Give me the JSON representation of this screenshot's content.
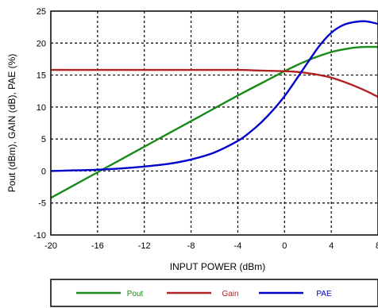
{
  "chart_data": {
    "type": "line",
    "title": "",
    "xlabel": "INPUT POWER (dBm)",
    "ylabel": "Pout (dBm), GAIN (dB), PAE (%)",
    "xlim": [
      -20,
      8
    ],
    "ylim": [
      -10,
      25
    ],
    "x_ticks": [
      -20,
      -16,
      -12,
      -8,
      -4,
      0,
      4,
      8
    ],
    "x_tick_labels": [
      "-20",
      "-16",
      "-12",
      "-8",
      "-4",
      "0",
      "4",
      "8"
    ],
    "y_ticks": [
      -10,
      -5,
      0,
      5,
      10,
      15,
      20,
      25
    ],
    "y_tick_labels": [
      "-10",
      "-5",
      "0",
      "5",
      "10",
      "15",
      "20",
      "25"
    ],
    "grid": true,
    "legend_position": "bottom",
    "series": [
      {
        "name": "Pout",
        "color": "#1a8a1a",
        "x": [
          -20,
          -18,
          -16,
          -14,
          -12,
          -10,
          -8,
          -6,
          -4,
          -2,
          0,
          1,
          2,
          3,
          4,
          5,
          6,
          7,
          8
        ],
        "y": [
          -4.2,
          -2.2,
          -0.2,
          1.8,
          3.8,
          5.8,
          7.8,
          9.8,
          11.8,
          13.7,
          15.6,
          16.5,
          17.3,
          18.0,
          18.6,
          19.0,
          19.3,
          19.4,
          19.4
        ]
      },
      {
        "name": "Gain",
        "color": "#b22222",
        "x": [
          -20,
          -16,
          -12,
          -8,
          -4,
          -2,
          0,
          1,
          2,
          3,
          4,
          5,
          6,
          7,
          8
        ],
        "y": [
          15.8,
          15.8,
          15.8,
          15.8,
          15.8,
          15.7,
          15.6,
          15.5,
          15.3,
          15.0,
          14.6,
          14.0,
          13.3,
          12.5,
          11.6
        ]
      },
      {
        "name": "PAE",
        "color": "#0000cc",
        "x": [
          -20,
          -18,
          -16,
          -14,
          -12,
          -10,
          -8,
          -6,
          -4,
          -3,
          -2,
          -1,
          0,
          1,
          2,
          3,
          4,
          5,
          6,
          7,
          8
        ],
        "y": [
          0,
          0.1,
          0.2,
          0.4,
          0.7,
          1.1,
          1.8,
          2.9,
          4.7,
          6.0,
          7.6,
          9.5,
          11.7,
          14.3,
          17.0,
          19.6,
          21.6,
          22.8,
          23.3,
          23.4,
          23.0
        ]
      }
    ]
  }
}
